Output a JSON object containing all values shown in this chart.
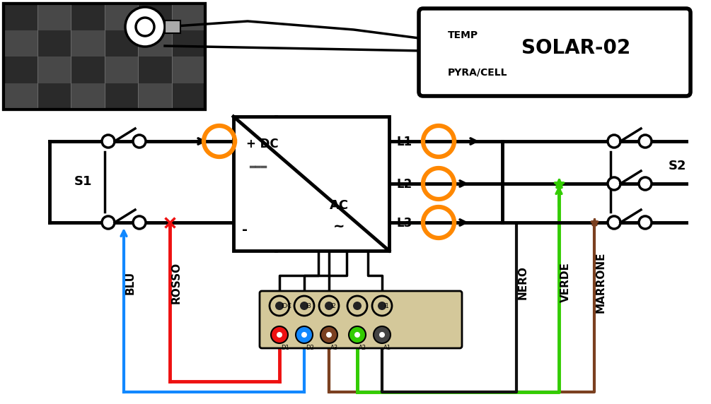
{
  "bg_color": "#ffffff",
  "black": "#000000",
  "red_wire": "#ee1111",
  "blue_wire": "#1188ff",
  "green_wire": "#33cc00",
  "brown_wire": "#7b4020",
  "orange_color": "#ff8800",
  "tan_color": "#d4c89a",
  "panel_dark1": "#2a2a2a",
  "panel_dark2": "#484848",
  "solar02_big": "SOLAR-02",
  "solar02_temp": "TEMP",
  "solar02_pyra": "PYRA/CELL",
  "s1": "S1",
  "s2": "S2",
  "blu": "BLU",
  "rosso": "ROSSO",
  "nero": "NERO",
  "verde": "VERDE",
  "marrone": "MARRONE",
  "l1": "L1",
  "l2": "L2",
  "l3": "L3",
  "dc_plus": "+ DC",
  "ac_text": "AC",
  "ac_wave": "~",
  "minus": "-",
  "figw": 10.05,
  "figh": 5.72,
  "dpi": 100
}
